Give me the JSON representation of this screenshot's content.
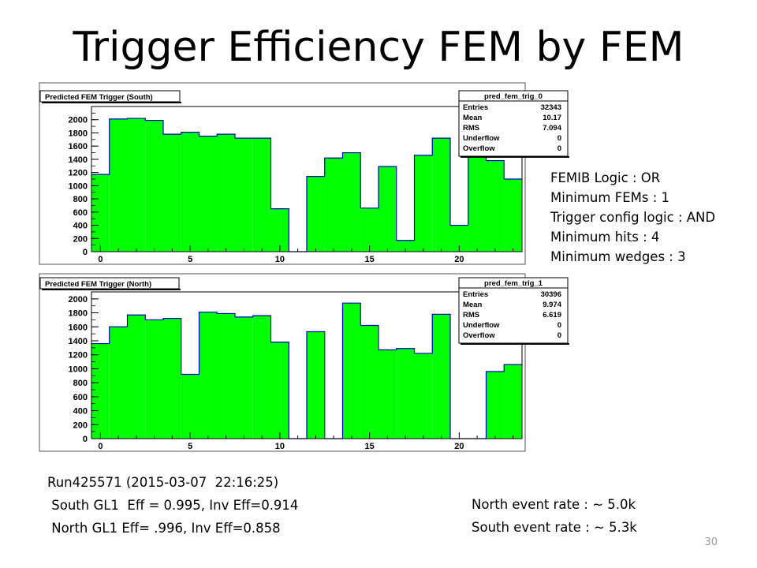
{
  "slide": {
    "title": "Trigger Efficiency FEM by FEM",
    "page_number": "30"
  },
  "config_notes": [
    "FEMIB Logic : OR",
    "Minimum FEMs : 1",
    "Trigger config logic : AND",
    "Minimum hits : 4",
    "Minimum wedges : 3"
  ],
  "run_info": {
    "run": "Run425571 (2015-03-07  22:16:25)",
    "south_eff": " South GL1  Eff = 0.995, Inv Eff=0.914",
    "north_eff": " North GL1 Eff= .996, Inv Eff=0.858"
  },
  "rates": {
    "north": "North event rate : ~ 5.0k",
    "south": "South event rate : ~ 5.3k"
  },
  "colors": {
    "fill": "#00ff00",
    "outline": "#0000cc",
    "frame": "#000000"
  },
  "chart_data": [
    {
      "type": "bar",
      "title": "Predicted FEM Trigger (South)",
      "x_bins": [
        0,
        1,
        2,
        3,
        4,
        5,
        6,
        7,
        8,
        9,
        10,
        11,
        12,
        13,
        14,
        15,
        16,
        17,
        18,
        19,
        20,
        21,
        22,
        23
      ],
      "values": [
        1170,
        2010,
        2020,
        1990,
        1780,
        1810,
        1750,
        1780,
        1720,
        1720,
        650,
        0,
        1140,
        1420,
        1500,
        660,
        1290,
        170,
        1460,
        1720,
        400,
        1550,
        1380,
        1100
      ],
      "xlim": [
        -0.5,
        23.5
      ],
      "ylim": [
        0,
        2200
      ],
      "yticks": [
        0,
        200,
        400,
        600,
        800,
        1000,
        1200,
        1400,
        1600,
        1800,
        2000
      ],
      "xticks": [
        0,
        5,
        10,
        15,
        20
      ],
      "stats": {
        "name": "pred_fem_trig_0",
        "rows": [
          {
            "label": "Entries",
            "value": "32343"
          },
          {
            "label": "Mean",
            "value": "10.17"
          },
          {
            "label": "RMS",
            "value": "7.094"
          },
          {
            "label": "Underflow",
            "value": "0"
          },
          {
            "label": "Overflow",
            "value": "0"
          }
        ]
      }
    },
    {
      "type": "bar",
      "title": "Predicted FEM Trigger (North)",
      "x_bins": [
        0,
        1,
        2,
        3,
        4,
        5,
        6,
        7,
        8,
        9,
        10,
        11,
        12,
        13,
        14,
        15,
        16,
        17,
        18,
        19,
        20,
        21,
        22,
        23
      ],
      "values": [
        1360,
        1600,
        1770,
        1700,
        1720,
        920,
        1810,
        1790,
        1740,
        1760,
        1380,
        0,
        1530,
        0,
        1940,
        1620,
        1270,
        1290,
        1220,
        1780,
        0,
        0,
        960,
        1060
      ],
      "xlim": [
        -0.5,
        23.5
      ],
      "ylim": [
        0,
        2100
      ],
      "yticks": [
        0,
        200,
        400,
        600,
        800,
        1000,
        1200,
        1400,
        1600,
        1800,
        2000
      ],
      "xticks": [
        0,
        5,
        10,
        15,
        20
      ],
      "stats": {
        "name": "pred_fem_trig_1",
        "rows": [
          {
            "label": "Entries",
            "value": "30396"
          },
          {
            "label": "Mean",
            "value": "9.974"
          },
          {
            "label": "RMS",
            "value": "6.619"
          },
          {
            "label": "Underflow",
            "value": "0"
          },
          {
            "label": "Overflow",
            "value": "0"
          }
        ]
      }
    }
  ]
}
